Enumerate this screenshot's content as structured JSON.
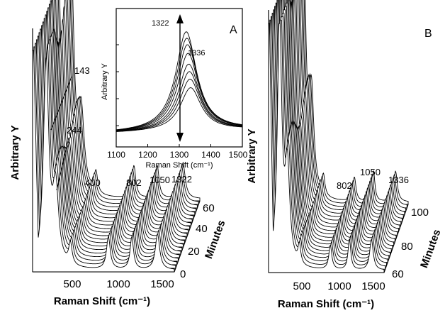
{
  "chart_data": [
    {
      "panel": "A",
      "type": "line",
      "xlabel": "Raman Shift (cm⁻¹)",
      "ylabel": "Arbitrary Y",
      "zlabel": "Minutes",
      "x_ticks": [
        "500",
        "1000",
        "1500"
      ],
      "z_ticks": [
        "0",
        "20",
        "40",
        "60"
      ],
      "xlim": [
        0,
        1500
      ],
      "zlim": [
        0,
        60
      ],
      "peak_labels": [
        "143",
        "244",
        "400",
        "802",
        "1050",
        "1322"
      ],
      "peaks_cm": [
        143,
        244,
        400,
        802,
        1050,
        1322
      ],
      "peak_heights": [
        2.4,
        0.9,
        0.25,
        0.38,
        0.38,
        0.42
      ],
      "trace_count": 21
    },
    {
      "panel": "A-inset",
      "type": "line",
      "xlabel": "Raman Shift (cm⁻¹)",
      "ylabel": "Arbitrary Y",
      "x_ticks": [
        "1100",
        "1200",
        "1300",
        "1400",
        "1500"
      ],
      "xlim": [
        1100,
        1500
      ],
      "peak_labels": [
        "1322",
        "1336"
      ],
      "series_peak_positions": [
        1322,
        1324,
        1326,
        1328,
        1330,
        1332,
        1334,
        1336
      ],
      "series_peak_heights": [
        0.92,
        0.86,
        0.8,
        0.72,
        0.62,
        0.55,
        0.48,
        0.4
      ]
    },
    {
      "panel": "B",
      "type": "line",
      "xlabel": "Raman Shift (cm⁻¹)",
      "ylabel": "Arbitrary Y",
      "zlabel": "Minutes",
      "x_ticks": [
        "500",
        "1000",
        "1500"
      ],
      "z_ticks": [
        "60",
        "80",
        "100"
      ],
      "xlim": [
        0,
        1500
      ],
      "zlim": [
        60,
        100
      ],
      "peak_labels": [
        "802",
        "1050",
        "1336"
      ],
      "peaks_cm": [
        143,
        244,
        400,
        802,
        1050,
        1336
      ],
      "peak_heights": [
        2.6,
        1.0,
        0.2,
        0.25,
        0.32,
        0.32
      ],
      "trace_count": 21
    }
  ]
}
